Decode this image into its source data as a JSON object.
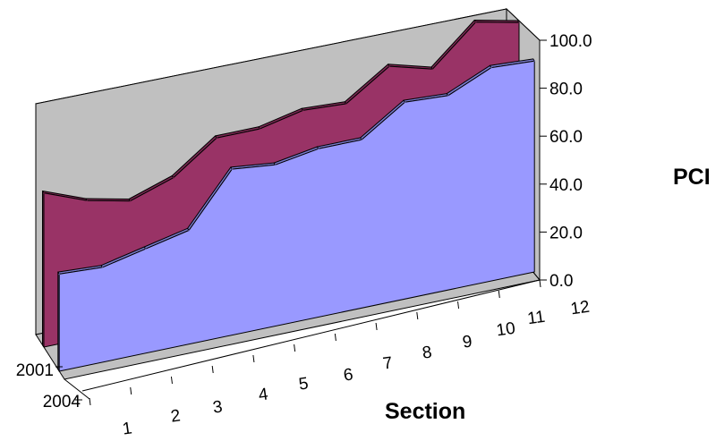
{
  "chart_data": {
    "type": "area",
    "variant": "3d-area",
    "xlabel": "Section",
    "ylabel": "PCI",
    "categories": [
      "1",
      "2",
      "3",
      "4",
      "5",
      "6",
      "7",
      "8",
      "9",
      "10",
      "11",
      "12"
    ],
    "ylim": [
      0,
      100
    ],
    "yticks": [
      "0.0",
      "20.0",
      "40.0",
      "60.0",
      "80.0",
      "100.0"
    ],
    "series": [
      {
        "name": "2001",
        "values": [
          65,
          58,
          54,
          60,
          73,
          73,
          77,
          76,
          88,
          83,
          99,
          95
        ],
        "color": "#993366"
      },
      {
        "name": "2004",
        "values": [
          41,
          40,
          44,
          48,
          70,
          68,
          71,
          71,
          83,
          82,
          90,
          89
        ],
        "color": "#9999ff"
      }
    ],
    "grid": false,
    "legend": "none"
  }
}
